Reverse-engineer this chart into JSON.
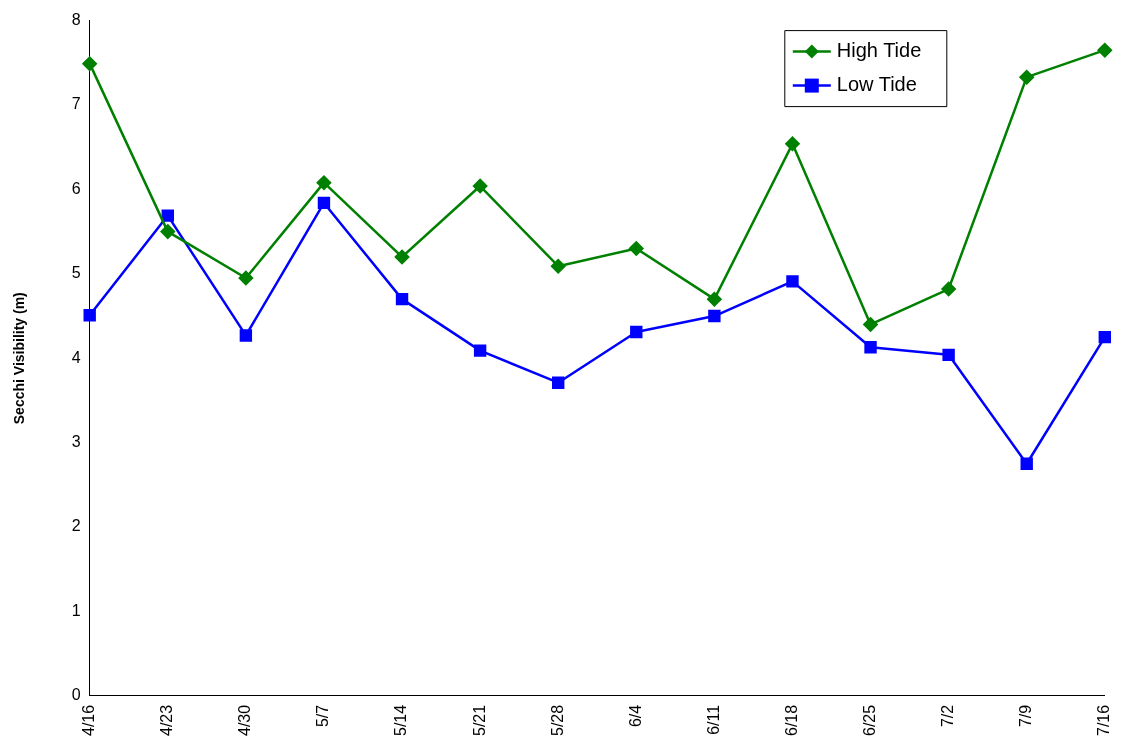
{
  "chart_data": {
    "type": "line",
    "ylabel": "Secchi Visibility (m)",
    "categories": [
      "4/16",
      "4/23",
      "4/30",
      "5/7",
      "5/14",
      "5/21",
      "5/28",
      "6/4",
      "6/11",
      "6/18",
      "6/25",
      "7/2",
      "7/9",
      "7/16"
    ],
    "series": [
      {
        "name": "High Tide",
        "color": "#008000",
        "marker": "diamond",
        "values": [
          7.49,
          5.5,
          4.95,
          6.08,
          5.2,
          6.04,
          5.09,
          5.3,
          4.7,
          6.54,
          4.4,
          4.82,
          7.33,
          7.65
        ]
      },
      {
        "name": "Low Tide",
        "color": "#0000ff",
        "marker": "square",
        "values": [
          4.51,
          5.69,
          4.27,
          5.84,
          4.7,
          4.09,
          3.71,
          4.31,
          4.5,
          4.91,
          4.13,
          4.04,
          2.75,
          4.25
        ]
      }
    ],
    "ylim": [
      0,
      8
    ],
    "yticks": [
      0,
      1,
      2,
      3,
      4,
      5,
      6,
      7,
      8
    ],
    "grid": false,
    "legend": "top right",
    "line_style": "solid"
  }
}
